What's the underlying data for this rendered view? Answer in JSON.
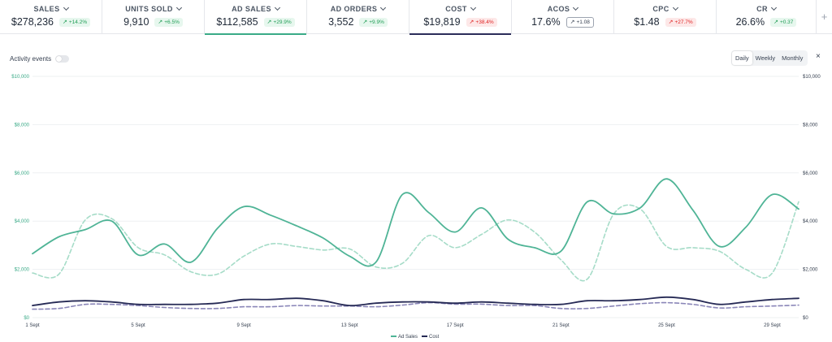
{
  "kpis": [
    {
      "label": "SALES",
      "value": "$278,236",
      "change": "+14.2%",
      "tone": "green",
      "selected": false
    },
    {
      "label": "UNITS SOLD",
      "value": "9,910",
      "change": "+6.5%",
      "tone": "green",
      "selected": false
    },
    {
      "label": "AD SALES",
      "value": "$112,585",
      "change": "+29.9%",
      "tone": "green",
      "selected": true,
      "underline_color": "#3aaa87"
    },
    {
      "label": "AD ORDERS",
      "value": "3,552",
      "change": "+9.9%",
      "tone": "green",
      "selected": false
    },
    {
      "label": "COST",
      "value": "$19,819",
      "change": "+38.4%",
      "tone": "red",
      "selected": true,
      "underline_color": "#2b2d5a"
    },
    {
      "label": "ACOS",
      "value": "17.6%",
      "change": "+1.08",
      "tone": "gray",
      "selected": false
    },
    {
      "label": "CPC",
      "value": "$1.48",
      "change": "+27.7%",
      "tone": "red",
      "selected": false
    },
    {
      "label": "CR",
      "value": "26.6%",
      "change": "+0.37",
      "tone": "green",
      "selected": false
    }
  ],
  "add_metric_icon": "plus-icon",
  "activity_label": "Activity events",
  "activity_enabled": false,
  "granularity": {
    "options": [
      "Daily",
      "Weekly",
      "Monthly"
    ],
    "selected": "Daily"
  },
  "close_label": "×",
  "colors": {
    "ad_sales": "#4fb496",
    "ad_sales_prev": "#a6dcc8",
    "cost": "#262a55",
    "cost_prev": "#8a86b8",
    "left_axis": "#3aaa87"
  },
  "chart_data": {
    "type": "line",
    "x": [
      "1 Sept",
      "2 Sept",
      "3 Sept",
      "4 Sept",
      "5 Sept",
      "6 Sept",
      "7 Sept",
      "8 Sept",
      "9 Sept",
      "10 Sept",
      "11 Sept",
      "12 Sept",
      "13 Sept",
      "14 Sept",
      "15 Sept",
      "16 Sept",
      "17 Sept",
      "18 Sept",
      "19 Sept",
      "20 Sept",
      "21 Sept",
      "22 Sept",
      "23 Sept",
      "24 Sept",
      "25 Sept",
      "26 Sept",
      "27 Sept",
      "28 Sept",
      "29 Sept",
      "30 Sept"
    ],
    "x_tick_labels": [
      "1 Sept",
      "5 Sept",
      "9 Sept",
      "13 Sept",
      "17 Sept",
      "21 Sept",
      "25 Sept",
      "29 Sept"
    ],
    "y_left_ticks": [
      "$0",
      "$2,000",
      "$4,000",
      "$6,000",
      "$8,000",
      "$10,000"
    ],
    "y_right_ticks": [
      "$0",
      "$2,000",
      "$4,000",
      "$6,000",
      "$8,000",
      "$10,000"
    ],
    "ylim": [
      0,
      10000
    ],
    "grid": true,
    "legend_position": "bottom-center",
    "series": [
      {
        "name": "Ad Sales",
        "style": "solid",
        "values": [
          2650,
          3350,
          3650,
          4000,
          2600,
          3050,
          2300,
          3700,
          4600,
          4250,
          3800,
          3300,
          2550,
          2300,
          5100,
          4350,
          3550,
          4550,
          3250,
          2900,
          2750,
          4800,
          4300,
          4550,
          5750,
          4450,
          2950,
          3750,
          5100,
          4500
        ]
      },
      {
        "style": "dashed",
        "values": [
          1850,
          1800,
          4050,
          4100,
          2900,
          2600,
          1900,
          1800,
          2550,
          3050,
          2950,
          2800,
          2850,
          2100,
          2250,
          3400,
          2900,
          3450,
          4050,
          3550,
          2400,
          1600,
          4300,
          4500,
          2950,
          2900,
          2750,
          2000,
          1850,
          4800
        ]
      },
      {
        "name": "Cost",
        "style": "solid",
        "values": [
          500,
          650,
          700,
          650,
          550,
          550,
          550,
          600,
          750,
          750,
          800,
          700,
          500,
          600,
          650,
          650,
          600,
          650,
          600,
          550,
          550,
          700,
          700,
          750,
          850,
          750,
          550,
          650,
          750,
          800
        ]
      },
      {
        "style": "dashed",
        "values": [
          350,
          380,
          550,
          550,
          500,
          420,
          380,
          380,
          450,
          450,
          500,
          480,
          480,
          450,
          520,
          620,
          560,
          560,
          500,
          500,
          380,
          380,
          480,
          580,
          620,
          550,
          400,
          450,
          480,
          520
        ]
      }
    ]
  }
}
